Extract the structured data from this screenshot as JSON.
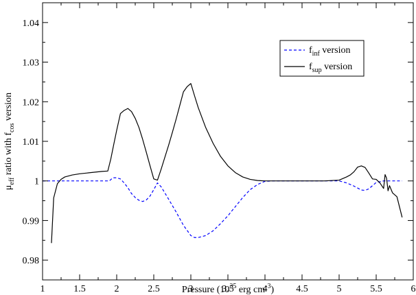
{
  "chart_data": {
    "type": "line",
    "xlabel": {
      "base": "Pressure (10",
      "exp1": "35",
      "mid": " erg cm",
      "exp2": "-3",
      "end": ")"
    },
    "ylabel": {
      "mu": "μ",
      "mu_sub": "eff",
      "mid": " ratio with f",
      "f_sub": "cos",
      "end": " version"
    },
    "xlim": [
      1,
      6
    ],
    "ylim": [
      0.975,
      1.045
    ],
    "xticks": [
      1,
      1.5,
      2,
      2.5,
      3,
      3.5,
      4,
      4.5,
      5,
      5.5,
      6
    ],
    "xtick_labels": [
      "1",
      "1.5",
      "2",
      "2.5",
      "3",
      "3.5",
      "4",
      "4.5",
      "5",
      "5.5",
      "6"
    ],
    "yticks": [
      0.98,
      0.99,
      1.0,
      1.01,
      1.02,
      1.03,
      1.04
    ],
    "ytick_labels": [
      "0.98",
      "0.99",
      "1",
      "1.01",
      "1.02",
      "1.03",
      "1.04"
    ],
    "legend_position": "top-right",
    "series": [
      {
        "name": "f",
        "name_sub": "inf",
        "name_suffix": " version",
        "color": "#0000ff",
        "dash": "dashed",
        "x": [
          1.0,
          1.2,
          1.5,
          1.8,
          1.9,
          1.95,
          2.0,
          2.05,
          2.1,
          2.15,
          2.2,
          2.25,
          2.3,
          2.35,
          2.4,
          2.45,
          2.5,
          2.55,
          2.6,
          2.7,
          2.8,
          2.9,
          3.0,
          3.05,
          3.1,
          3.2,
          3.3,
          3.4,
          3.5,
          3.6,
          3.7,
          3.8,
          3.9,
          4.0,
          4.1,
          4.2,
          4.5,
          4.8,
          5.0,
          5.1,
          5.2,
          5.3,
          5.35,
          5.4,
          5.5,
          5.6,
          5.7,
          5.85
        ],
        "y": [
          1.0,
          1.0,
          1.0,
          1.0,
          1.0,
          1.0008,
          1.0008,
          1.0005,
          0.9995,
          0.9983,
          0.9968,
          0.9958,
          0.9951,
          0.9948,
          0.9952,
          0.9962,
          0.9978,
          0.9995,
          0.9985,
          0.9954,
          0.9922,
          0.9888,
          0.9862,
          0.9857,
          0.9857,
          0.9862,
          0.9874,
          0.9892,
          0.9912,
          0.9935,
          0.9958,
          0.9978,
          0.9991,
          0.9999,
          1.0,
          1.0,
          1.0,
          1.0,
          1.0,
          0.9995,
          0.9987,
          0.9977,
          0.9976,
          0.998,
          0.9996,
          1.0,
          1.0,
          1.0
        ]
      },
      {
        "name": "f",
        "name_sub": "sup",
        "name_suffix": " version",
        "color": "#000000",
        "dash": "solid",
        "x": [
          1.12,
          1.15,
          1.2,
          1.25,
          1.3,
          1.4,
          1.5,
          1.6,
          1.7,
          1.8,
          1.88,
          1.92,
          1.96,
          2.0,
          2.05,
          2.1,
          2.15,
          2.2,
          2.25,
          2.3,
          2.35,
          2.4,
          2.45,
          2.5,
          2.55,
          2.6,
          2.65,
          2.7,
          2.75,
          2.8,
          2.85,
          2.9,
          2.95,
          3.0,
          3.05,
          3.1,
          3.2,
          3.3,
          3.4,
          3.5,
          3.6,
          3.7,
          3.8,
          3.9,
          4.0,
          4.1,
          4.5,
          4.8,
          5.0,
          5.1,
          5.15,
          5.2,
          5.25,
          5.3,
          5.35,
          5.4,
          5.45,
          5.5,
          5.55,
          5.6,
          5.62,
          5.64,
          5.66,
          5.68,
          5.72,
          5.78,
          5.85
        ],
        "y": [
          0.9843,
          0.9957,
          0.9993,
          1.0004,
          1.001,
          1.0015,
          1.0018,
          1.002,
          1.0022,
          1.0024,
          1.0025,
          1.0055,
          1.0092,
          1.0128,
          1.017,
          1.0178,
          1.0183,
          1.0175,
          1.0158,
          1.0135,
          1.0105,
          1.0072,
          1.0038,
          1.0005,
          1.0002,
          1.003,
          1.006,
          1.009,
          1.0122,
          1.0155,
          1.019,
          1.0225,
          1.0238,
          1.0246,
          1.0215,
          1.0185,
          1.0135,
          1.0095,
          1.0062,
          1.0038,
          1.0021,
          1.001,
          1.0004,
          1.0001,
          1.0,
          1.0,
          1.0,
          1.0,
          1.0002,
          1.001,
          1.0015,
          1.0023,
          1.0035,
          1.0038,
          1.0034,
          1.002,
          1.0005,
          1.0004,
          0.9995,
          0.9981,
          1.0016,
          1.0007,
          0.9975,
          0.9988,
          0.997,
          0.996,
          0.9908
        ]
      }
    ]
  }
}
